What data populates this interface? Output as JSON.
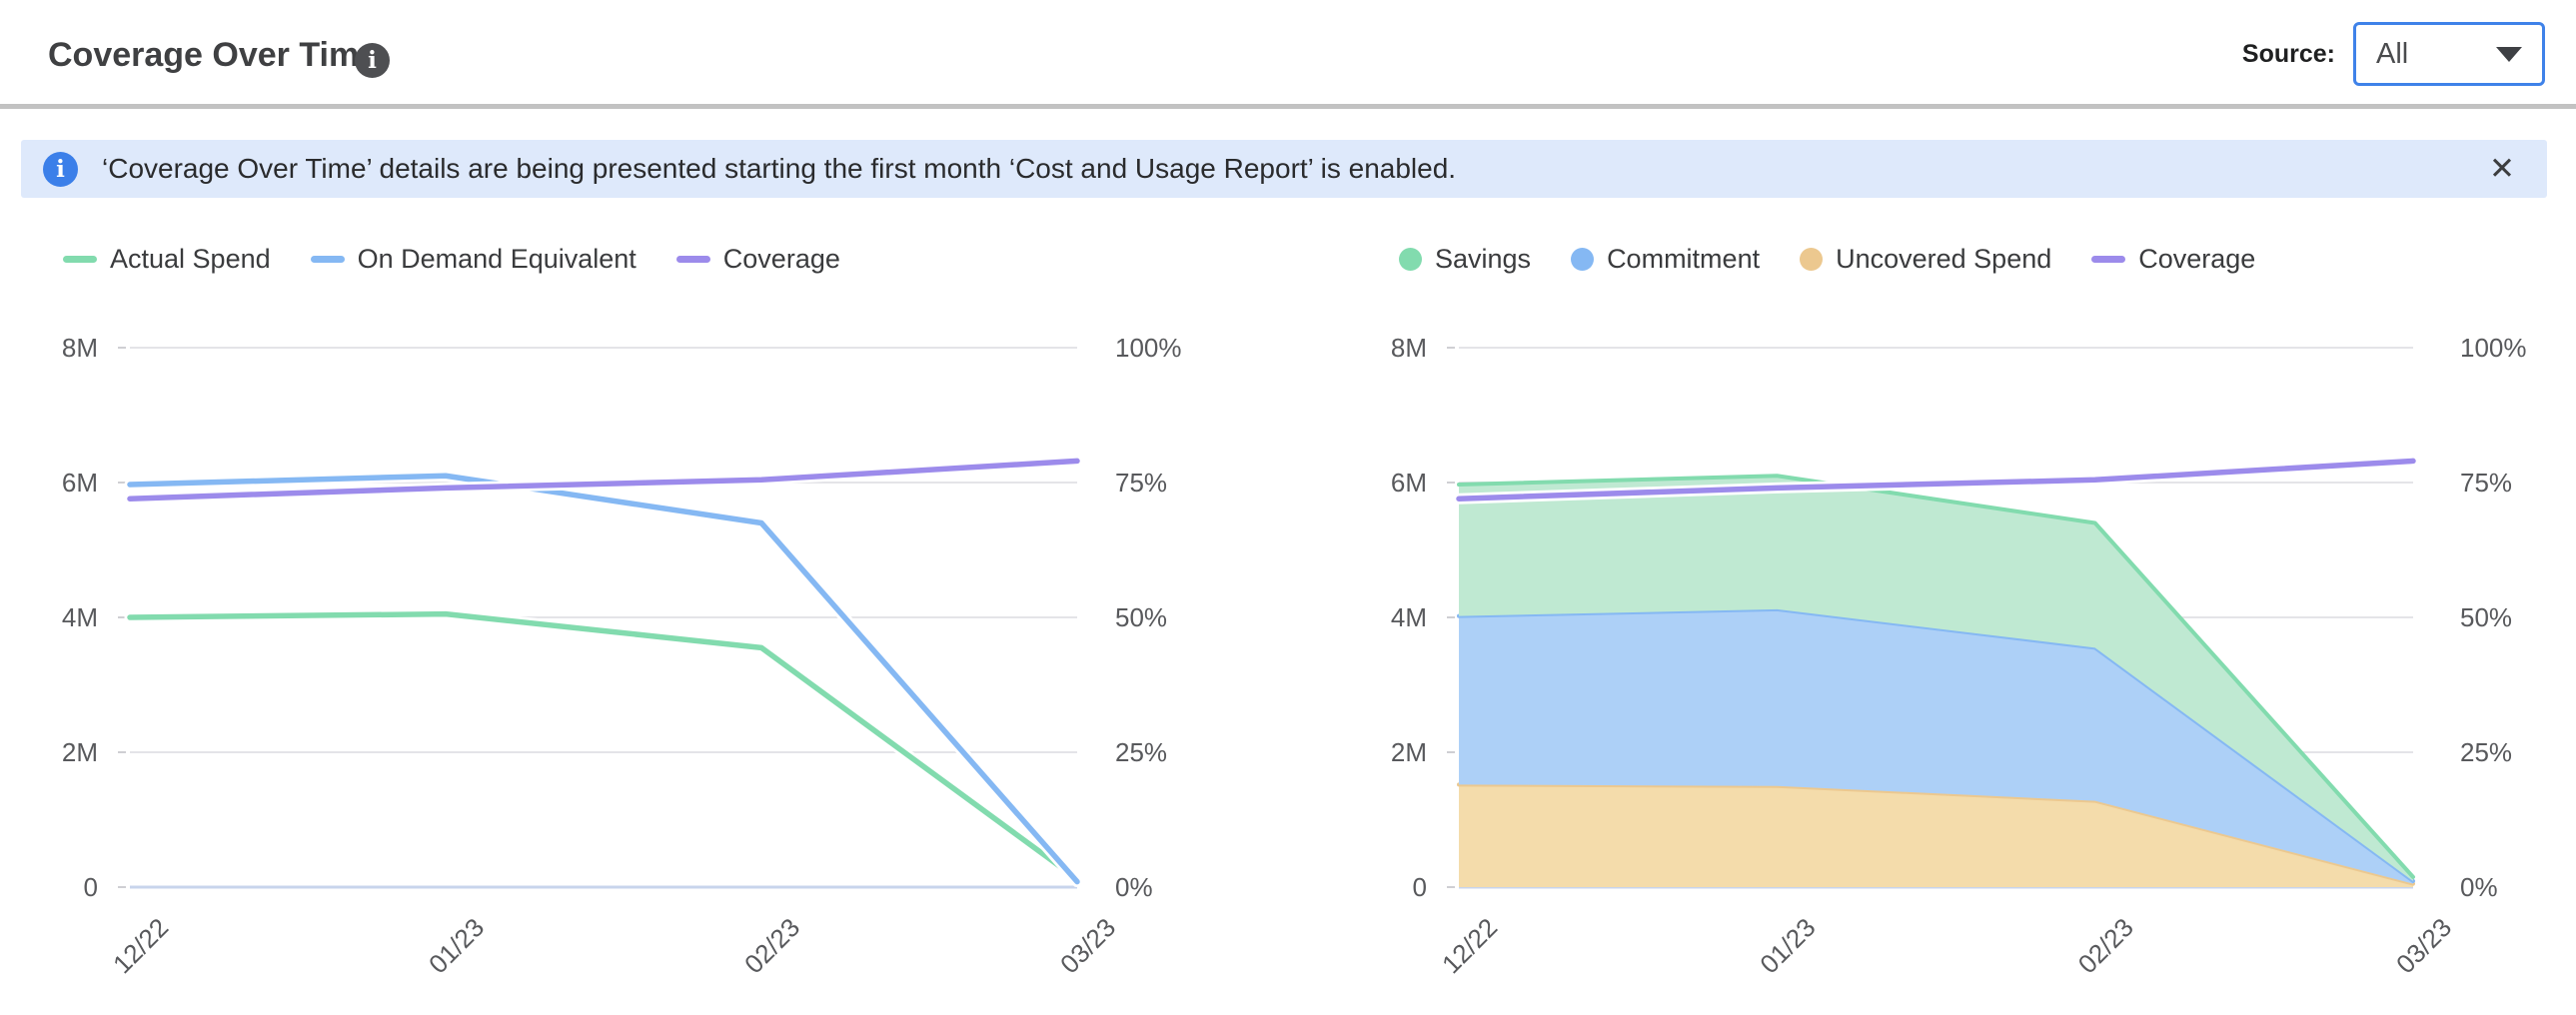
{
  "header": {
    "title": "Coverage Over Time",
    "source_label": "Source:",
    "source_value": "All"
  },
  "icons": {
    "info": "i",
    "close": "✕",
    "caret": "triangle-down"
  },
  "banner": {
    "text": "‘Coverage Over Time’ details are being presented starting the first month ‘Cost and Usage Report’ is enabled."
  },
  "colors": {
    "green": "#82DBAE",
    "blue": "#85B8F3",
    "purple": "#9C8BEB",
    "orange": "#ECC88F",
    "green_fill": "#BFE9D2",
    "blue_fill": "#ADD0F7",
    "orange_fill": "#F4DCAB",
    "gridline": "#E4E4E8",
    "zero_line": "#C8D4EC",
    "banner_bg": "#DEE9FB",
    "accent_blue": "#3F82E9"
  },
  "chart_data": [
    {
      "id": "spend_vs_on_demand",
      "type": "line",
      "categories": [
        "12/22",
        "01/23",
        "02/23",
        "03/23"
      ],
      "yticks_left": [
        "8M",
        "6M",
        "4M",
        "2M",
        "0"
      ],
      "yticks_right": [
        "100%",
        "75%",
        "50%",
        "25%",
        "0%"
      ],
      "ylim_left": [
        0,
        8
      ],
      "ylim_right": [
        0,
        100
      ],
      "units_left": "M",
      "units_right": "%",
      "grid": true,
      "legend_position": "top-left",
      "series": [
        {
          "name": "Actual Spend",
          "marker": "line",
          "axis": "left",
          "color": "#82DBAE",
          "values": [
            4.0,
            4.05,
            3.55,
            0.12
          ]
        },
        {
          "name": "On Demand Equivalent",
          "marker": "line",
          "axis": "left",
          "color": "#85B8F3",
          "values": [
            5.97,
            6.1,
            5.4,
            0.08
          ]
        },
        {
          "name": "Coverage",
          "marker": "line",
          "axis": "right",
          "color": "#9C8BEB",
          "values": [
            72,
            74,
            75.5,
            79
          ]
        }
      ]
    },
    {
      "id": "savings_breakdown",
      "type": "area",
      "categories": [
        "12/22",
        "01/23",
        "02/23",
        "03/23"
      ],
      "yticks_left": [
        "8M",
        "6M",
        "4M",
        "2M",
        "0"
      ],
      "yticks_right": [
        "100%",
        "75%",
        "50%",
        "25%",
        "0%"
      ],
      "ylim_left": [
        0,
        8
      ],
      "ylim_right": [
        0,
        100
      ],
      "units_left": "M",
      "units_right": "%",
      "grid": true,
      "legend_position": "top-left",
      "series": [
        {
          "name": "Savings",
          "marker": "circle",
          "axis": "left",
          "stacked": true,
          "color": "#82DBAE",
          "fill": "#BFE9D2",
          "values": [
            1.95,
            1.98,
            1.85,
            0.06
          ]
        },
        {
          "name": "Commitment",
          "marker": "circle",
          "axis": "left",
          "stacked": true,
          "color": "#85B8F3",
          "fill": "#ADD0F7",
          "values": [
            2.5,
            2.62,
            2.27,
            0.04
          ]
        },
        {
          "name": "Uncovered Spend",
          "marker": "circle",
          "axis": "left",
          "stacked": true,
          "color": "#ECC88F",
          "fill": "#F4DCAB",
          "values": [
            1.52,
            1.5,
            1.28,
            0.05
          ]
        },
        {
          "name": "Coverage",
          "marker": "line",
          "axis": "right",
          "color": "#9C8BEB",
          "values": [
            72,
            74,
            75.5,
            79
          ]
        }
      ]
    }
  ]
}
